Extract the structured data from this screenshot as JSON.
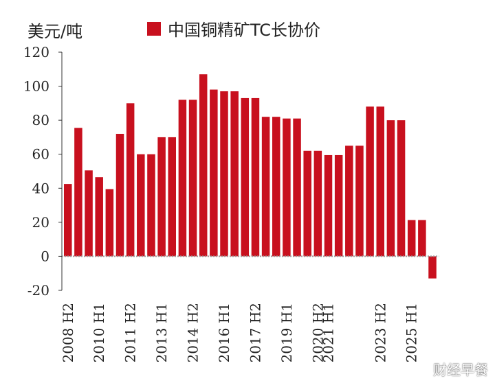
{
  "chart_data": {
    "type": "bar",
    "unit_label": "美元/吨",
    "legend_label": "中国铜精矿TC长协价",
    "bar_color": "#c8101e",
    "ylim": [
      -20,
      120
    ],
    "yticks": [
      -20,
      0,
      20,
      40,
      60,
      80,
      100,
      120
    ],
    "grid": false,
    "legend_position": "top",
    "categories": [
      "2008 H2",
      "2009 H1",
      "2009 H2",
      "2010 H1",
      "2010 H2",
      "2011 H1",
      "2011 H2",
      "2012 H1",
      "2012 H2",
      "2013 H1",
      "2013 H2",
      "2014 H1",
      "2014 H2",
      "2015 H1",
      "2015 H2",
      "2016 H1",
      "2016 H2",
      "2017 H1",
      "2017 H2",
      "2018 H1",
      "2018 H2",
      "2019 H1",
      "2019 H2",
      "2020 H1",
      "2020 H2",
      "2021 H1",
      "2021 H2",
      "2022 H1",
      "2022 H2",
      "2023 H1",
      "2023 H2",
      "2024 H1",
      "2024 H2",
      "2025 H1",
      "2025 H2"
    ],
    "shown_tick_labels": [
      "2008 H2",
      "2010 H1",
      "2011 H2",
      "2013 H1",
      "2014 H2",
      "2016 H1",
      "2017 H2",
      "2019 H1",
      "2020 H2",
      "2021 H1",
      "2023 H2",
      "2025 H1"
    ],
    "values": [
      42.5,
      75.5,
      50.5,
      46.5,
      39.5,
      72,
      90,
      60,
      60,
      70,
      70,
      92,
      92,
      107,
      98,
      97,
      97,
      93,
      93,
      82,
      82,
      81,
      81,
      62,
      62,
      59.5,
      59.5,
      65,
      65,
      88,
      88,
      80,
      80,
      21.3,
      21.3
    ],
    "extra_bar": {
      "value": -13,
      "position_after_index": 34
    }
  },
  "watermark": "财经早餐"
}
